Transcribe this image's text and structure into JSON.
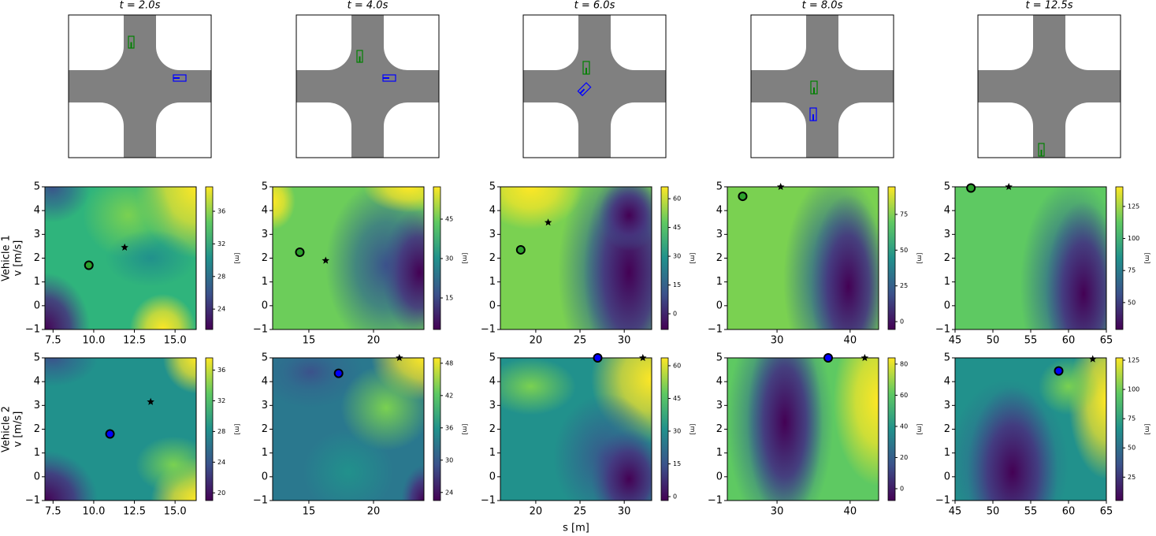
{
  "snapshots": [
    {
      "title": "t = 2.0s"
    },
    {
      "title": "t = 4.0s"
    },
    {
      "title": "t = 6.0s"
    },
    {
      "title": "t = 8.0s"
    },
    {
      "title": "t = 12.5s"
    }
  ],
  "row_labels": [
    {
      "vehicle": "Vehicle 1",
      "color": "#2ca02c",
      "y_label": "v [m/s]"
    },
    {
      "vehicle": "Vehicle 2",
      "color": "#0000ff",
      "y_label": "v [m/s]"
    }
  ],
  "x_label": "s [m]",
  "chart_data": [
    {
      "type": "contour",
      "xlim": [
        7.0,
        16.3
      ],
      "xticks": [
        7.5,
        {
          "value": 10,
          "label": "10.0"
        },
        12.5,
        {
          "value": 15,
          "label": "15.0"
        }
      ],
      "ylim": [
        -1,
        5
      ],
      "yticks": [
        {
          "value": -1,
          "label": "−1"
        },
        0,
        1,
        2,
        3,
        4,
        5
      ],
      "colorbar": {
        "lim": [
          21.5,
          39.0
        ],
        "ticks": [
          24,
          28,
          32,
          36
        ],
        "label": "[m]"
      },
      "circle": {
        "x": 9.7,
        "y": 1.7,
        "color": "#2ca02c"
      },
      "star": {
        "x": 11.9,
        "y": 2.45
      }
    },
    {
      "type": "contour",
      "xlim": [
        12.2,
        23.9
      ],
      "xticks": [
        15,
        20
      ],
      "ylim": [
        -1,
        5
      ],
      "yticks": [
        {
          "value": -1,
          "label": "−1"
        },
        0,
        1,
        2,
        3,
        4,
        5
      ],
      "colorbar": {
        "lim": [
          3.0,
          57.3
        ],
        "ticks": [
          15,
          30,
          45
        ],
        "label": "[m]"
      },
      "circle": {
        "x": 14.3,
        "y": 2.25,
        "color": "#2ca02c"
      },
      "star": {
        "x": 16.3,
        "y": 1.9
      }
    },
    {
      "type": "contour",
      "xlim": [
        16.0,
        33.1
      ],
      "xticks": [
        20,
        25,
        30
      ],
      "ylim": [
        -1,
        5
      ],
      "yticks": [
        {
          "value": -1,
          "label": "−1"
        },
        0,
        1,
        2,
        3,
        4,
        5
      ],
      "colorbar": {
        "lim": [
          -8.2,
          66.2
        ],
        "ticks": [
          0,
          15,
          30,
          45,
          60
        ],
        "label": "[m]"
      },
      "circle": {
        "x": 18.3,
        "y": 2.35,
        "color": "#2ca02c"
      },
      "star": {
        "x": 21.4,
        "y": 3.5
      }
    },
    {
      "type": "contour",
      "xlim": [
        23.2,
        43.9
      ],
      "xticks": [
        30,
        40
      ],
      "ylim": [
        -1,
        5
      ],
      "yticks": [
        {
          "value": -1,
          "label": "−1"
        },
        0,
        1,
        2,
        3,
        4,
        5
      ],
      "colorbar": {
        "lim": [
          -5.5,
          94.3
        ],
        "ticks": [
          0,
          25,
          50,
          75
        ],
        "label": "[m]"
      },
      "circle": {
        "x": 25.3,
        "y": 4.6,
        "color": "#2ca02c"
      },
      "star": {
        "x": 30.5,
        "y": 5.0
      }
    },
    {
      "type": "contour",
      "xlim": [
        45,
        65
      ],
      "xticks": [
        45,
        50,
        55,
        60,
        65
      ],
      "ylim": [
        -1,
        5
      ],
      "yticks": [
        {
          "value": -1,
          "label": "−1"
        },
        0,
        1,
        2,
        3,
        4,
        5
      ],
      "colorbar": {
        "lim": [
          29,
          140.3
        ],
        "ticks": [
          50,
          75,
          100,
          125
        ],
        "label": "[m]"
      },
      "circle": {
        "x": 47.1,
        "y": 4.95,
        "color": "#2ca02c"
      },
      "star": {
        "x": 52.1,
        "y": 5.0
      }
    },
    {
      "type": "contour",
      "xlim": [
        7.0,
        16.3
      ],
      "xticks": [
        7.5,
        {
          "value": 10,
          "label": "10.0"
        },
        12.5,
        {
          "value": 15,
          "label": "15.0"
        }
      ],
      "ylim": [
        -1,
        5
      ],
      "yticks": [
        {
          "value": -1,
          "label": "−1"
        },
        0,
        1,
        2,
        3,
        4,
        5
      ],
      "colorbar": {
        "lim": [
          19.0,
          37.6
        ],
        "ticks": [
          20,
          24,
          28,
          32,
          36
        ],
        "label": "[m]"
      },
      "circle": {
        "x": 11.0,
        "y": 1.8,
        "color": "#0000ff"
      },
      "star": {
        "x": 13.5,
        "y": 3.15
      }
    },
    {
      "type": "contour",
      "xlim": [
        12.2,
        23.9
      ],
      "xticks": [
        15,
        20
      ],
      "ylim": [
        -1,
        5
      ],
      "yticks": [
        {
          "value": -1,
          "label": "−1"
        },
        0,
        1,
        2,
        3,
        4,
        5
      ],
      "colorbar": {
        "lim": [
          22.5,
          49.0
        ],
        "ticks": [
          24,
          30,
          36,
          42,
          48
        ],
        "label": "[m]"
      },
      "circle": {
        "x": 17.3,
        "y": 4.35,
        "color": "#0000ff"
      },
      "star": {
        "x": 22.0,
        "y": 5.0
      }
    },
    {
      "type": "contour",
      "xlim": [
        16.0,
        33.1
      ],
      "xticks": [
        20,
        25,
        30
      ],
      "ylim": [
        -1,
        5
      ],
      "yticks": [
        {
          "value": -1,
          "label": "−1"
        },
        0,
        1,
        2,
        3,
        4,
        5
      ],
      "colorbar": {
        "lim": [
          -1.8,
          63.6
        ],
        "ticks": [
          0,
          15,
          30,
          45,
          60
        ],
        "label": "[m]"
      },
      "circle": {
        "x": 27.0,
        "y": 5.0,
        "color": "#0000ff"
      },
      "star": {
        "x": 32.1,
        "y": 5.0
      }
    },
    {
      "type": "contour",
      "xlim": [
        23.2,
        43.9
      ],
      "xticks": [
        30,
        40
      ],
      "ylim": [
        -1,
        5
      ],
      "yticks": [
        {
          "value": -1,
          "label": "−1"
        },
        0,
        1,
        2,
        3,
        4,
        5
      ],
      "colorbar": {
        "lim": [
          -7.6,
          84.0
        ],
        "ticks": [
          0,
          20,
          40,
          60,
          80
        ],
        "label": "[m]"
      },
      "circle": {
        "x": 37.0,
        "y": 5.0,
        "color": "#0000ff"
      },
      "star": {
        "x": 42.0,
        "y": 5.0
      }
    },
    {
      "type": "contour",
      "xlim": [
        45,
        65
      ],
      "xticks": [
        45,
        50,
        55,
        60,
        65
      ],
      "ylim": [
        -1,
        5
      ],
      "yticks": [
        {
          "value": -1,
          "label": "−1"
        },
        0,
        1,
        2,
        3,
        4,
        5
      ],
      "colorbar": {
        "lim": [
          5,
          127
        ],
        "ticks": [
          25,
          50,
          75,
          100,
          125
        ],
        "label": "[m]"
      },
      "circle": {
        "x": 58.7,
        "y": 4.45,
        "color": "#0000ff"
      },
      "star": {
        "x": 63.2,
        "y": 4.95
      }
    }
  ]
}
